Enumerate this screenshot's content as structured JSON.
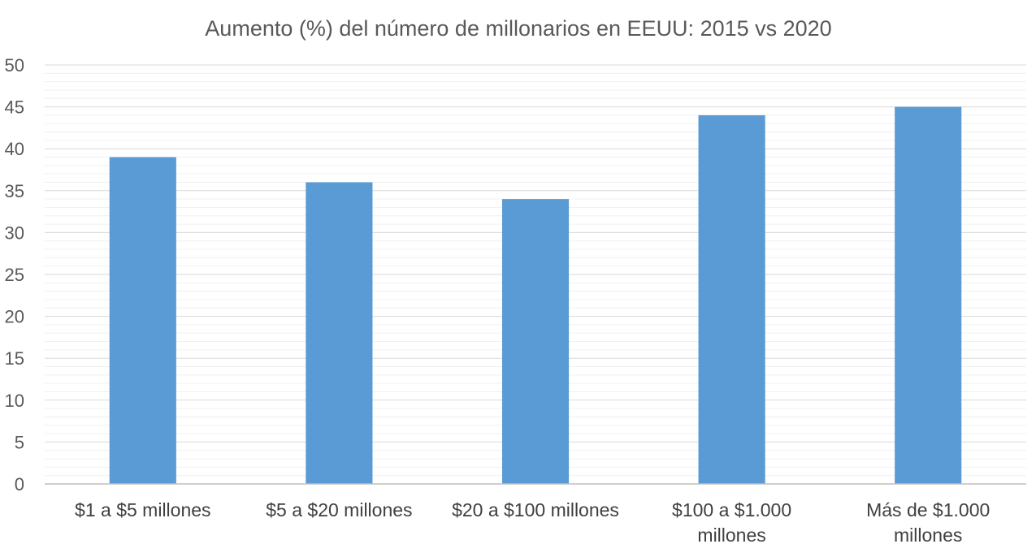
{
  "chart_data": {
    "type": "bar",
    "title": "Aumento (%) del número de millonarios en EEUU: 2015 vs 2020",
    "xlabel": "",
    "ylabel": "",
    "ylim": [
      0,
      50
    ],
    "y_ticks": [
      0,
      5,
      10,
      15,
      20,
      25,
      30,
      35,
      40,
      45,
      50
    ],
    "y_tick_labels": [
      "0",
      "5",
      "10",
      "15",
      "20",
      "25",
      "30",
      "35",
      "40",
      "45",
      "50"
    ],
    "minor_gridlines": true,
    "legend": "none",
    "categories": [
      [
        "$1 a $5 millones"
      ],
      [
        "$5 a $20 millones"
      ],
      [
        "$20 a $100 millones"
      ],
      [
        "$100 a $1.000",
        "millones"
      ],
      [
        "Más de $1.000",
        "millones"
      ]
    ],
    "values": [
      39,
      36,
      34,
      44,
      45
    ],
    "colors": {
      "bar": "#5b9bd5",
      "major_grid": "#d9d9d9",
      "minor_grid": "#f0f0f0",
      "axis": "#bfbfbf"
    }
  }
}
